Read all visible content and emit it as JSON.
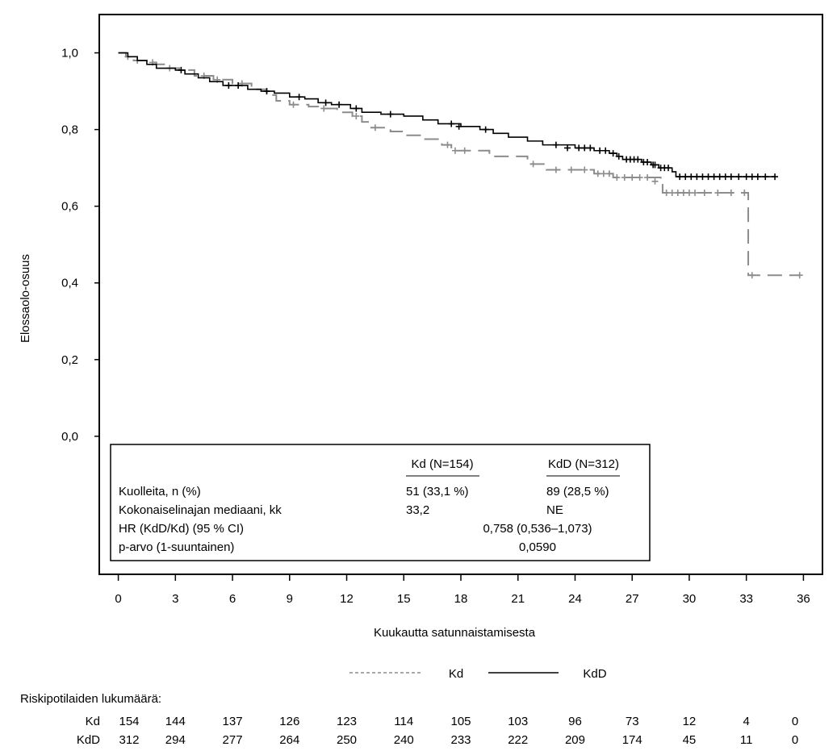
{
  "chart_data": {
    "type": "line",
    "subtype": "kaplan-meier",
    "xlabel": "Kuukautta satunnaistamisesta",
    "ylabel": "Elossaolo-osuus",
    "xlim": [
      -1,
      37
    ],
    "ylim": [
      -0.36,
      1.1
    ],
    "xticks": [
      0,
      3,
      6,
      9,
      12,
      15,
      18,
      21,
      24,
      27,
      30,
      33,
      36
    ],
    "xtick_labels": [
      "0",
      "3",
      "6",
      "9",
      "12",
      "15",
      "18",
      "21",
      "24",
      "27",
      "30",
      "33",
      "36"
    ],
    "yticks": [
      0.0,
      0.2,
      0.4,
      0.6,
      0.8,
      1.0
    ],
    "ytick_labels": [
      "0,0",
      "0,2",
      "0,4",
      "0,6",
      "0,8",
      "1,0"
    ],
    "grid": false,
    "series": [
      {
        "name": "Kd",
        "color": "#8c8c8c",
        "dash": "dashed",
        "steps": [
          [
            0,
            1.0
          ],
          [
            0.4,
            0.99
          ],
          [
            0.8,
            0.98
          ],
          [
            1.5,
            0.975
          ],
          [
            2.0,
            0.97
          ],
          [
            2.5,
            0.96
          ],
          [
            3.2,
            0.955
          ],
          [
            4.0,
            0.94
          ],
          [
            5.0,
            0.93
          ],
          [
            6.0,
            0.92
          ],
          [
            7.0,
            0.905
          ],
          [
            7.8,
            0.89
          ],
          [
            8.3,
            0.875
          ],
          [
            9.0,
            0.865
          ],
          [
            10.0,
            0.86
          ],
          [
            10.5,
            0.855
          ],
          [
            11.5,
            0.845
          ],
          [
            12.3,
            0.835
          ],
          [
            12.8,
            0.82
          ],
          [
            13.2,
            0.805
          ],
          [
            14.3,
            0.795
          ],
          [
            15.0,
            0.785
          ],
          [
            16.0,
            0.775
          ],
          [
            17.0,
            0.76
          ],
          [
            17.5,
            0.745
          ],
          [
            19.5,
            0.73
          ],
          [
            21.5,
            0.71
          ],
          [
            22.5,
            0.695
          ],
          [
            25.0,
            0.685
          ],
          [
            26.0,
            0.675
          ],
          [
            28.5,
            0.665
          ],
          [
            28.6,
            0.635
          ],
          [
            33.1,
            0.42
          ],
          [
            35.8,
            0.42
          ]
        ],
        "censored": [
          [
            0.5,
            0.99
          ],
          [
            1.0,
            0.98
          ],
          [
            1.8,
            0.975
          ],
          [
            2.7,
            0.96
          ],
          [
            4.5,
            0.94
          ],
          [
            5.2,
            0.93
          ],
          [
            6.5,
            0.92
          ],
          [
            9.2,
            0.865
          ],
          [
            10.8,
            0.855
          ],
          [
            12.5,
            0.835
          ],
          [
            13.5,
            0.805
          ],
          [
            17.3,
            0.76
          ],
          [
            17.7,
            0.745
          ],
          [
            18.2,
            0.745
          ],
          [
            21.8,
            0.71
          ],
          [
            23.0,
            0.695
          ],
          [
            23.8,
            0.695
          ],
          [
            24.5,
            0.695
          ],
          [
            25.2,
            0.685
          ],
          [
            25.5,
            0.685
          ],
          [
            25.8,
            0.685
          ],
          [
            26.2,
            0.675
          ],
          [
            26.6,
            0.675
          ],
          [
            27.0,
            0.675
          ],
          [
            27.4,
            0.675
          ],
          [
            27.8,
            0.675
          ],
          [
            28.2,
            0.665
          ],
          [
            28.8,
            0.635
          ],
          [
            29.1,
            0.635
          ],
          [
            29.4,
            0.635
          ],
          [
            29.7,
            0.635
          ],
          [
            30.0,
            0.635
          ],
          [
            30.3,
            0.635
          ],
          [
            30.8,
            0.635
          ],
          [
            31.5,
            0.635
          ],
          [
            32.2,
            0.635
          ],
          [
            32.9,
            0.635
          ],
          [
            33.3,
            0.42
          ],
          [
            35.8,
            0.42
          ]
        ]
      },
      {
        "name": "KdD",
        "color": "#000000",
        "dash": "solid",
        "steps": [
          [
            0,
            1.0
          ],
          [
            0.5,
            0.99
          ],
          [
            1.0,
            0.98
          ],
          [
            1.5,
            0.97
          ],
          [
            2.0,
            0.96
          ],
          [
            3.0,
            0.955
          ],
          [
            3.5,
            0.945
          ],
          [
            4.2,
            0.935
          ],
          [
            4.8,
            0.925
          ],
          [
            5.5,
            0.915
          ],
          [
            6.8,
            0.905
          ],
          [
            7.5,
            0.9
          ],
          [
            8.2,
            0.895
          ],
          [
            9.0,
            0.885
          ],
          [
            9.8,
            0.88
          ],
          [
            10.5,
            0.87
          ],
          [
            11.2,
            0.865
          ],
          [
            12.2,
            0.855
          ],
          [
            12.8,
            0.845
          ],
          [
            13.8,
            0.84
          ],
          [
            15.0,
            0.835
          ],
          [
            16.0,
            0.825
          ],
          [
            16.8,
            0.815
          ],
          [
            18.0,
            0.808
          ],
          [
            19.0,
            0.8
          ],
          [
            19.7,
            0.79
          ],
          [
            20.5,
            0.78
          ],
          [
            21.5,
            0.77
          ],
          [
            22.3,
            0.76
          ],
          [
            24.0,
            0.752
          ],
          [
            25.0,
            0.745
          ],
          [
            25.8,
            0.738
          ],
          [
            26.2,
            0.73
          ],
          [
            26.5,
            0.722
          ],
          [
            27.5,
            0.715
          ],
          [
            28.0,
            0.708
          ],
          [
            28.4,
            0.7
          ],
          [
            29.1,
            0.69
          ],
          [
            29.3,
            0.677
          ],
          [
            34.5,
            0.677
          ]
        ],
        "censored": [
          [
            3.3,
            0.955
          ],
          [
            5.8,
            0.915
          ],
          [
            6.3,
            0.915
          ],
          [
            7.8,
            0.9
          ],
          [
            9.5,
            0.885
          ],
          [
            10.9,
            0.87
          ],
          [
            11.6,
            0.865
          ],
          [
            12.5,
            0.855
          ],
          [
            14.3,
            0.84
          ],
          [
            17.5,
            0.815
          ],
          [
            17.9,
            0.808
          ],
          [
            19.3,
            0.8
          ],
          [
            23.0,
            0.76
          ],
          [
            23.6,
            0.752
          ],
          [
            24.2,
            0.752
          ],
          [
            24.5,
            0.752
          ],
          [
            24.8,
            0.752
          ],
          [
            25.3,
            0.745
          ],
          [
            25.6,
            0.745
          ],
          [
            26.0,
            0.738
          ],
          [
            26.3,
            0.73
          ],
          [
            26.7,
            0.722
          ],
          [
            26.9,
            0.722
          ],
          [
            27.1,
            0.722
          ],
          [
            27.3,
            0.722
          ],
          [
            27.6,
            0.715
          ],
          [
            27.8,
            0.715
          ],
          [
            28.1,
            0.708
          ],
          [
            28.2,
            0.708
          ],
          [
            28.5,
            0.7
          ],
          [
            28.7,
            0.7
          ],
          [
            28.9,
            0.7
          ],
          [
            29.5,
            0.677
          ],
          [
            29.8,
            0.677
          ],
          [
            30.1,
            0.677
          ],
          [
            30.4,
            0.677
          ],
          [
            30.7,
            0.677
          ],
          [
            31.0,
            0.677
          ],
          [
            31.3,
            0.677
          ],
          [
            31.6,
            0.677
          ],
          [
            31.9,
            0.677
          ],
          [
            32.2,
            0.677
          ],
          [
            32.6,
            0.677
          ],
          [
            33.0,
            0.677
          ],
          [
            33.3,
            0.677
          ],
          [
            33.6,
            0.677
          ],
          [
            34.0,
            0.677
          ],
          [
            34.5,
            0.677
          ]
        ]
      }
    ],
    "legend": [
      {
        "name": "Kd",
        "style": "dashed"
      },
      {
        "name": "KdD",
        "style": "solid"
      }
    ],
    "stats_table": {
      "col_headers": [
        "Kd (N=154)",
        "KdD (N=312)"
      ],
      "rows": [
        {
          "label": "Kuolleita, n (%)",
          "kd": "51 (33,1 %)",
          "kdd": "89 (28,5 %)"
        },
        {
          "label": "Kokonaiselinajan mediaani, kk",
          "kd": "33,2",
          "kdd": "NE"
        },
        {
          "label": "HR (KdD/Kd) (95 % CI)",
          "combined": "0,758 (0,536–1,073)"
        },
        {
          "label": "p-arvo (1-suuntainen)",
          "combined": "0,0590"
        }
      ]
    },
    "risk_table": {
      "title": "Riskipotilaiden lukumäärä:",
      "times": [
        0,
        3,
        6,
        9,
        12,
        15,
        18,
        21,
        24,
        27,
        30,
        33,
        36
      ],
      "rows": [
        {
          "label": "Kd",
          "values": [
            "154",
            "144",
            "137",
            "126",
            "123",
            "114",
            "105",
            "103",
            "96",
            "73",
            "12",
            "4",
            "0"
          ]
        },
        {
          "label": "KdD",
          "values": [
            "312",
            "294",
            "277",
            "264",
            "250",
            "240",
            "233",
            "222",
            "209",
            "174",
            "45",
            "11",
            "0"
          ]
        }
      ]
    }
  }
}
